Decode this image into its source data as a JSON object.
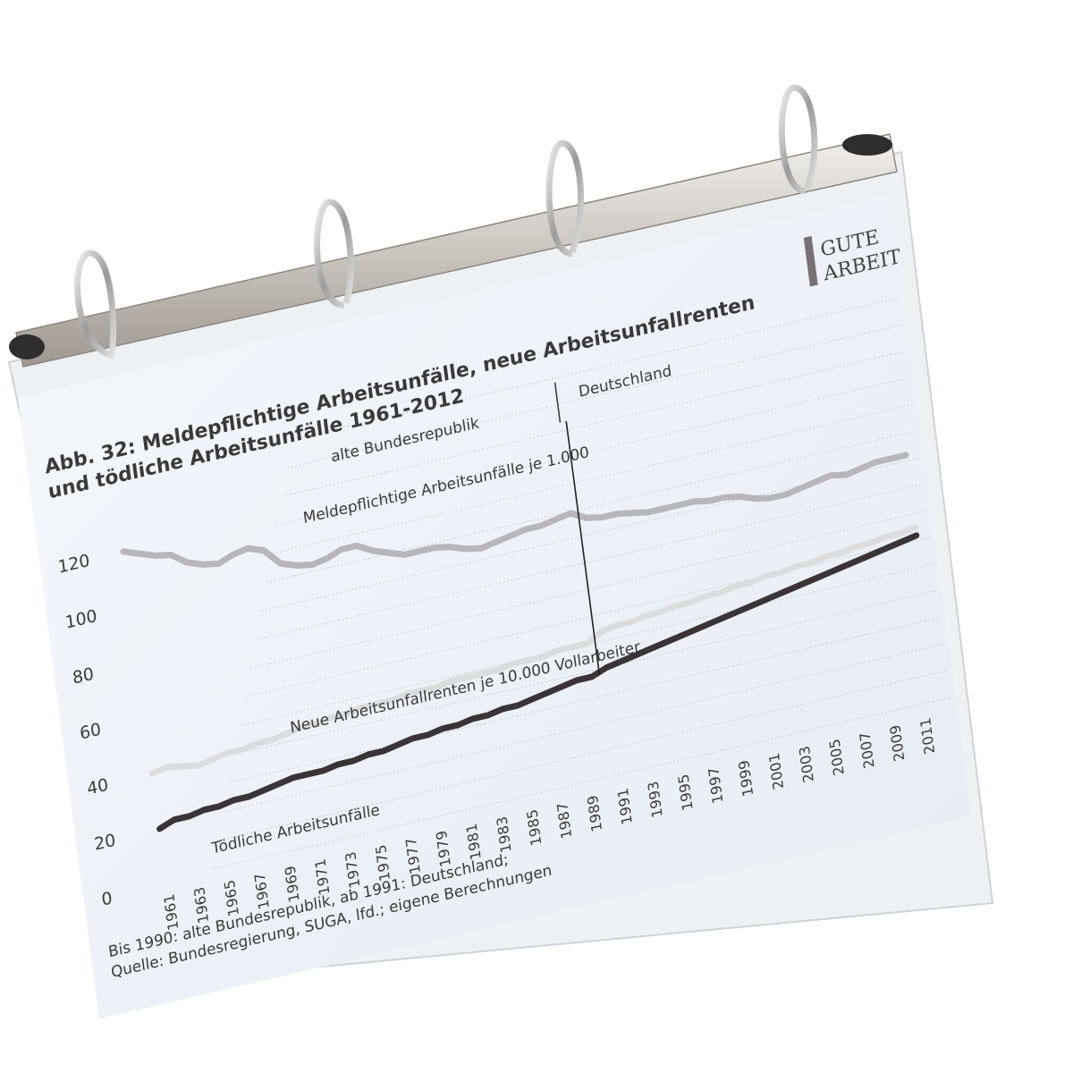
{
  "logo": {
    "line1": "GUTE",
    "line2": "ARBEIT"
  },
  "figure": {
    "title_line1": "Abb. 32: Meldepflichtige Arbeitsunfälle, neue Arbeitsunfallrenten",
    "title_line2": "und tödliche Arbeitsunfälle 1961-2012",
    "region_left": "alte Bundesrepublik",
    "region_right": "Deutschland",
    "note": "Bis 1990: alte Bundesrepublik, ab 1991: Deutschland;",
    "source": "Quelle: Bundesregierung, SUGA, lfd.; eigene Berechnungen"
  },
  "chart_data": {
    "type": "line",
    "ylim": [
      0,
      120
    ],
    "yticks": [
      "0",
      "20",
      "40",
      "60",
      "80",
      "100",
      "120"
    ],
    "x_tick_labels": [
      "1961",
      "1963",
      "1965",
      "1967",
      "1969",
      "1971",
      "1973",
      "1975",
      "1977",
      "1979",
      "1981",
      "1983",
      "1985",
      "1987",
      "1989",
      "1991",
      "1993",
      "1995",
      "1997",
      "1999",
      "2001",
      "2003",
      "2005",
      "2007",
      "2009",
      "2011"
    ],
    "x": [
      1961,
      1962,
      1963,
      1964,
      1965,
      1966,
      1967,
      1968,
      1969,
      1970,
      1971,
      1972,
      1973,
      1974,
      1975,
      1976,
      1977,
      1978,
      1979,
      1980,
      1981,
      1982,
      1983,
      1984,
      1985,
      1986,
      1987,
      1988,
      1989,
      1990,
      1991,
      1992,
      1993,
      1994,
      1995,
      1996,
      1997,
      1998,
      1999,
      2000,
      2001,
      2002,
      2003,
      2004,
      2005,
      2006,
      2007,
      2008,
      2009,
      2010,
      2011,
      2012
    ],
    "divider_year": 1990.5,
    "series": [
      {
        "name": "Meldepflichtige Arbeitsunfälle je 1.000",
        "color": "#b9b6bb",
        "values": [
          120,
          118,
          116,
          115,
          111,
          109,
          108,
          110,
          111,
          109,
          103,
          101,
          100,
          101,
          103,
          103,
          100,
          98,
          96,
          96,
          96,
          95,
          93,
          92,
          93,
          94,
          95,
          95,
          96,
          97,
          94,
          93,
          93,
          92,
          91,
          91,
          91,
          91,
          90,
          90,
          89,
          87,
          86,
          86,
          87,
          88,
          89,
          88,
          89,
          90,
          90,
          90
        ]
      },
      {
        "name": "Neue Arbeitsunfallrenten je 10.000 Vollarbeiter",
        "color": "#dcdcdf",
        "values": [
          40,
          41,
          40,
          39,
          40,
          41,
          41,
          42,
          42,
          43,
          44,
          44,
          45,
          45,
          46,
          46,
          46,
          47,
          47,
          47,
          48,
          48,
          48,
          48,
          49,
          49,
          49,
          50,
          50,
          50,
          53,
          54,
          54,
          55,
          55,
          56,
          56,
          57,
          57,
          58,
          58,
          59,
          59,
          60,
          60,
          61,
          61,
          62,
          62,
          63,
          63,
          64
        ]
      },
      {
        "name": "Tödliche Arbeitsunfälle",
        "color": "#3a3337",
        "values": [
          20,
          22,
          22,
          23,
          23,
          24,
          24,
          25,
          26,
          27,
          27,
          27,
          28,
          28,
          29,
          29,
          30,
          31,
          31,
          32,
          32,
          33,
          33,
          34,
          34,
          35,
          36,
          37,
          38,
          38,
          40,
          41,
          42,
          43,
          44,
          45,
          46,
          47,
          48,
          49,
          50,
          51,
          52,
          53,
          54,
          55,
          56,
          57,
          58,
          59,
          60,
          61
        ]
      }
    ]
  }
}
